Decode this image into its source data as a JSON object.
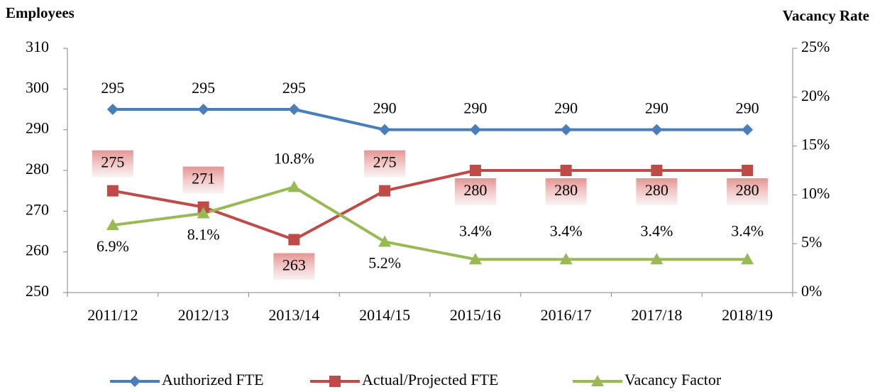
{
  "chart_data": {
    "type": "line",
    "y_axis_title": "Employees",
    "y2_axis_title": "Vacancy Rate",
    "categories": [
      "2011/12",
      "2012/13",
      "2013/14",
      "2014/15",
      "2015/16",
      "2016/17",
      "2017/18",
      "2018/19"
    ],
    "series": [
      {
        "name": "Authorized FTE",
        "color": "#4a7ebb",
        "marker": "diamond",
        "values": [
          295,
          295,
          295,
          290,
          290,
          290,
          290,
          290
        ]
      },
      {
        "name": "Actual/Projected FTE",
        "color": "#be4b48",
        "marker": "square",
        "values": [
          275,
          271,
          263,
          275,
          280,
          280,
          280,
          280
        ]
      },
      {
        "name": "Vacancy Factor",
        "color": "#98b954",
        "marker": "triangle",
        "axis": "y2",
        "values": [
          6.9,
          8.1,
          10.8,
          5.2,
          3.4,
          3.4,
          3.4,
          3.4
        ],
        "value_labels": [
          "6.9%",
          "8.1%",
          "10.8%",
          "5.2%",
          "3.4%",
          "3.4%",
          "3.4%",
          "3.4%"
        ]
      }
    ],
    "ylim": [
      250,
      310
    ],
    "yticks": [
      250,
      260,
      270,
      280,
      290,
      300,
      310
    ],
    "y2lim": [
      0,
      25
    ],
    "y2ticks": [
      {
        "value": 0,
        "label": "0%"
      },
      {
        "value": 5,
        "label": "5%"
      },
      {
        "value": 10,
        "label": "10%"
      },
      {
        "value": 15,
        "label": "15%"
      },
      {
        "value": 20,
        "label": "20%"
      },
      {
        "value": 25,
        "label": "25%"
      }
    ],
    "legend": "bottom",
    "grid": false
  }
}
